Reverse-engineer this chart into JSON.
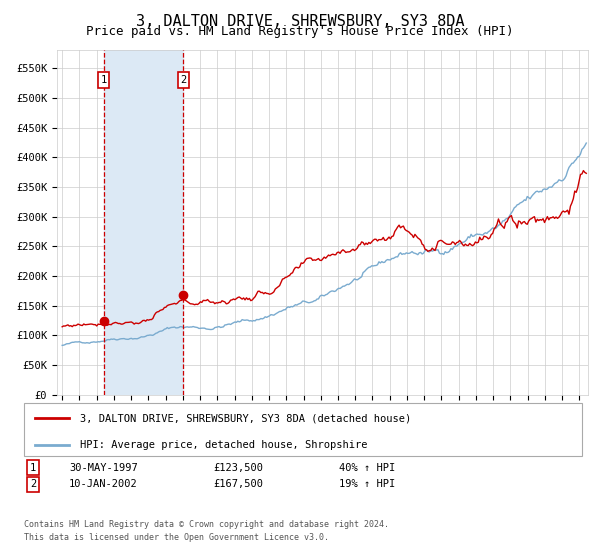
{
  "title": "3, DALTON DRIVE, SHREWSBURY, SY3 8DA",
  "subtitle": "Price paid vs. HM Land Registry's House Price Index (HPI)",
  "title_fontsize": 11,
  "subtitle_fontsize": 9,
  "ylim": [
    0,
    580000
  ],
  "yticks": [
    0,
    50000,
    100000,
    150000,
    200000,
    250000,
    300000,
    350000,
    400000,
    450000,
    500000,
    550000
  ],
  "ytick_labels": [
    "£0",
    "£50K",
    "£100K",
    "£150K",
    "£200K",
    "£250K",
    "£300K",
    "£350K",
    "£400K",
    "£450K",
    "£500K",
    "£550K"
  ],
  "x_start_year": 1995,
  "x_end_year": 2025,
  "sale1_date": 1997.41,
  "sale1_price": 123500,
  "sale1_label": "1",
  "sale1_date_str": "30-MAY-1997",
  "sale1_pct": "40%",
  "sale2_date": 2002.03,
  "sale2_price": 167500,
  "sale2_label": "2",
  "sale2_date_str": "10-JAN-2002",
  "sale2_pct": "19%",
  "red_line_color": "#cc0000",
  "blue_line_color": "#7aabcf",
  "shade_color": "#dce9f5",
  "dashed_line_color": "#cc0000",
  "grid_color": "#cccccc",
  "background_color": "#ffffff",
  "legend_label1": "3, DALTON DRIVE, SHREWSBURY, SY3 8DA (detached house)",
  "legend_label2": "HPI: Average price, detached house, Shropshire",
  "footnote1": "Contains HM Land Registry data © Crown copyright and database right 2024.",
  "footnote2": "This data is licensed under the Open Government Licence v3.0.",
  "box_color": "#cc0000"
}
